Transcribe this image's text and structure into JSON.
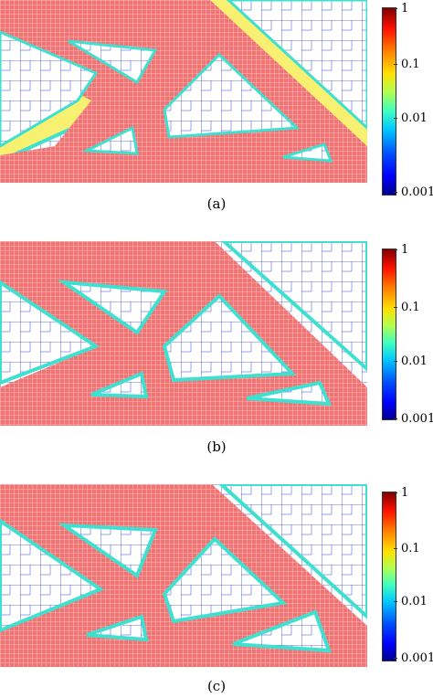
{
  "panels": [
    {
      "caption": "(a)"
    },
    {
      "caption": "(b)"
    },
    {
      "caption": "(c)"
    }
  ],
  "colorbar": {
    "ticks": [
      "1",
      "0.1",
      "0.01",
      "0.001"
    ],
    "scale": "log",
    "colormap": "jet"
  },
  "colors": {
    "material": "#f07474",
    "mesh": "#3a46c8",
    "border_green": "#b8f060",
    "border_cyan": "#40e0d0",
    "border_yellow": "#f8f070"
  }
}
